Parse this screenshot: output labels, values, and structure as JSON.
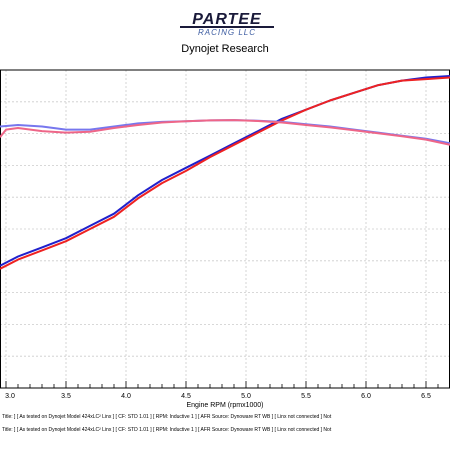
{
  "header": {
    "logo_main": "PARTEE",
    "logo_sub": "RACING LLC",
    "subtitle": "Dynojet Research"
  },
  "chart_data": {
    "type": "line",
    "xlabel": "Engine RPM (rpmx1000)",
    "ylabel": "",
    "xlim": [
      2.95,
      6.7
    ],
    "ylim": [
      0,
      100
    ],
    "x_ticks": [
      "3.0",
      "3.5",
      "4.0",
      "4.5",
      "5.0",
      "5.5",
      "6.0",
      "6.5"
    ],
    "grid": true,
    "series": [
      {
        "color": "#2020cc",
        "x": [
          2.95,
          3.1,
          3.3,
          3.5,
          3.7,
          3.9,
          4.1,
          4.3,
          4.5,
          4.7,
          4.9,
          5.1,
          5.3,
          5.5,
          5.7,
          5.9,
          6.1,
          6.3,
          6.5,
          6.7
        ],
        "y": [
          38,
          41,
          44,
          47,
          51,
          55,
          61,
          66,
          70,
          74,
          78,
          82,
          86,
          89,
          92,
          94.5,
          97,
          98.5,
          99.5,
          100
        ]
      },
      {
        "color": "#ee2222",
        "x": [
          2.95,
          3.1,
          3.3,
          3.5,
          3.7,
          3.9,
          4.1,
          4.3,
          4.5,
          4.7,
          4.9,
          5.1,
          5.3,
          5.5,
          5.7,
          5.9,
          6.1,
          6.3,
          6.5,
          6.7
        ],
        "y": [
          37,
          40,
          43,
          46,
          50,
          54,
          60,
          65,
          69,
          73.5,
          77.5,
          81.5,
          85.5,
          89,
          92,
          94.5,
          97,
          98.5,
          99,
          99.5
        ]
      },
      {
        "color": "#7777ee",
        "x": [
          2.95,
          3.1,
          3.3,
          3.5,
          3.7,
          3.9,
          4.1,
          4.3,
          4.5,
          4.7,
          4.9,
          5.1,
          5.3,
          5.5,
          5.7,
          5.9,
          6.1,
          6.3,
          6.5,
          6.7
        ],
        "y": [
          83.5,
          84,
          83.5,
          82.5,
          82.5,
          83.5,
          84.5,
          85,
          85.2,
          85.5,
          85.6,
          85.4,
          85,
          84.2,
          83.5,
          82.5,
          81.5,
          80.5,
          79.5,
          78
        ]
      },
      {
        "color": "#ee6688",
        "x": [
          2.95,
          3.0,
          3.1,
          3.3,
          3.5,
          3.7,
          3.9,
          4.1,
          4.3,
          4.5,
          4.7,
          4.9,
          5.1,
          5.3,
          5.5,
          5.7,
          5.9,
          6.1,
          6.3,
          6.5,
          6.7
        ],
        "y": [
          80,
          82.5,
          83,
          82,
          81.5,
          81.8,
          83,
          84,
          84.8,
          85.2,
          85.5,
          85.6,
          85.3,
          84.8,
          84,
          83.2,
          82.3,
          81.3,
          80.3,
          79.2,
          77.5
        ]
      }
    ]
  },
  "footer": {
    "run_lines": [
      "Title: ] [ As tested on Dynojet Model 424xLC² Linx ] [ CF: STD 1.01 ] [ RPM: Inductive 1 ] [ AFR Source: Dynoware RT WB ] [ Linx not connected ] Not",
      "Title: ] [ As tested on Dynojet Model 424xLC² Linx ] [ CF: STD 1.01 ] [ RPM: Inductive 1 ] [ AFR Source: Dynoware RT WB ] [ Linx not connected ] Not"
    ]
  }
}
